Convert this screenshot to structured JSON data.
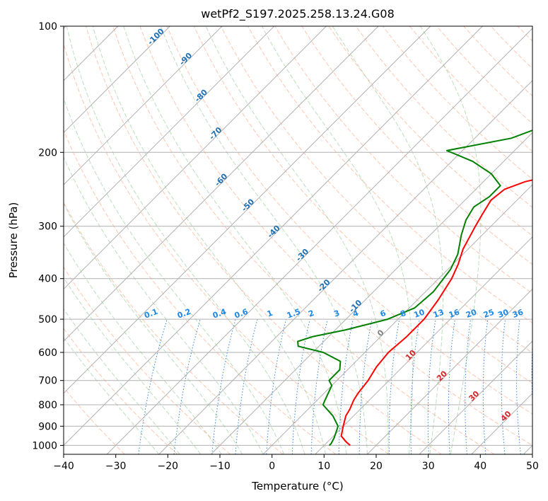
{
  "chart_data": {
    "type": "line",
    "title": "wetPf2_S197.2025.258.13.24.G08",
    "xlabel": "Temperature (°C)",
    "ylabel": "Pressure (hPa)",
    "xlim": [
      -40,
      50
    ],
    "ylim": [
      1050,
      100
    ],
    "y_scale": "log",
    "x_ticks": [
      "−40",
      "−30",
      "−20",
      "−10",
      "0",
      "10",
      "20",
      "30",
      "40",
      "50"
    ],
    "y_ticks": [
      {
        "p": 100,
        "label": "100"
      },
      {
        "p": 200,
        "label": "200"
      },
      {
        "p": 300,
        "label": "300"
      },
      {
        "p": 400,
        "label": "400"
      },
      {
        "p": 500,
        "label": "500"
      },
      {
        "p": 600,
        "label": "600"
      },
      {
        "p": 700,
        "label": "700"
      },
      {
        "p": 800,
        "label": "800"
      },
      {
        "p": 900,
        "label": "900"
      },
      {
        "p": 1000,
        "label": "1000"
      }
    ],
    "grid": true,
    "skew": true,
    "series": [
      {
        "role": "temperature",
        "color": "#ff0000",
        "points": [
          [
            15,
            1000
          ],
          [
            13.5,
            980
          ],
          [
            11.5,
            950
          ],
          [
            10,
            900
          ],
          [
            8.5,
            850
          ],
          [
            8,
            820
          ],
          [
            7,
            780
          ],
          [
            6.5,
            750
          ],
          [
            6,
            700
          ],
          [
            5,
            650
          ],
          [
            4.5,
            600
          ],
          [
            5,
            550
          ],
          [
            5,
            500
          ],
          [
            4,
            450
          ],
          [
            2.5,
            400
          ],
          [
            1,
            370
          ],
          [
            -1,
            340
          ],
          [
            -3,
            300
          ],
          [
            -4,
            280
          ],
          [
            -5,
            260
          ],
          [
            -4.5,
            245
          ],
          [
            -2,
            235
          ],
          [
            3,
            225
          ],
          [
            8,
            210
          ],
          [
            10,
            200
          ],
          [
            14,
            180
          ],
          [
            17,
            165
          ],
          [
            20,
            150
          ],
          [
            24,
            130
          ],
          [
            28,
            115
          ],
          [
            32,
            100
          ]
        ]
      },
      {
        "role": "dewpoint",
        "color": "#008000",
        "points": [
          [
            11,
            1000
          ],
          [
            11,
            990
          ],
          [
            10.5,
            960
          ],
          [
            9,
            900
          ],
          [
            6,
            850
          ],
          [
            2,
            800
          ],
          [
            1.5,
            780
          ],
          [
            0,
            720
          ],
          [
            -1.5,
            700
          ],
          [
            -1.5,
            660
          ],
          [
            -3,
            630
          ],
          [
            -8,
            600
          ],
          [
            -14,
            580
          ],
          [
            -15,
            565
          ],
          [
            -13,
            550
          ],
          [
            -8,
            530
          ],
          [
            -2,
            500
          ],
          [
            1,
            470
          ],
          [
            1.5,
            430
          ],
          [
            0.5,
            380
          ],
          [
            -1,
            350
          ],
          [
            -4,
            315
          ],
          [
            -6,
            290
          ],
          [
            -7,
            270
          ],
          [
            -6,
            255
          ],
          [
            -6,
            240
          ],
          [
            -10,
            225
          ],
          [
            -16,
            210
          ],
          [
            -23,
            198
          ],
          [
            -13,
            185
          ],
          [
            -8,
            170
          ],
          [
            -11,
            160
          ],
          [
            -11,
            150
          ],
          [
            -6,
            140
          ],
          [
            -7,
            125
          ],
          [
            -5,
            115
          ],
          [
            -2,
            105
          ],
          [
            0,
            100
          ]
        ]
      }
    ],
    "mixing_ratio_labels": [
      "0.1",
      "0.2",
      "0.4",
      "0.6",
      "1",
      "1.5",
      "2",
      "3",
      "4",
      "6",
      "8",
      "10",
      "13",
      "16",
      "20",
      "25",
      "30",
      "36"
    ],
    "mixing_ratio_values": [
      0.1,
      0.2,
      0.4,
      0.6,
      1,
      1.5,
      2,
      3,
      4,
      6,
      8,
      10,
      13,
      16,
      20,
      25,
      30,
      36
    ],
    "isotherm_labels": [
      {
        "t": -100,
        "label": "-100"
      },
      {
        "t": -90,
        "label": "-90"
      },
      {
        "t": -80,
        "label": "-80"
      },
      {
        "t": -70,
        "label": "-70"
      },
      {
        "t": -60,
        "label": "-60"
      },
      {
        "t": -50,
        "label": "-50"
      },
      {
        "t": -40,
        "label": "-40"
      },
      {
        "t": -30,
        "label": "-30"
      },
      {
        "t": -20,
        "label": "-20"
      },
      {
        "t": -10,
        "label": "-10"
      }
    ],
    "lower_isotherm_labels": [
      {
        "t": 0,
        "label": "0"
      },
      {
        "t": 10,
        "label": "10"
      },
      {
        "t": 20,
        "label": "20"
      },
      {
        "t": 30,
        "label": "30"
      },
      {
        "t": 40,
        "label": "40"
      }
    ],
    "colors": {
      "isotherm_label": "#1f6fb4",
      "mixing_ratio": "#1e88e5",
      "warm_label": "#d62728",
      "zero_label": "#808080",
      "dry_adiabat": "#ffa07a",
      "moist_adiabat": "#90c890",
      "mixing_line": "#1e78d8",
      "grid": "#b0b0b0"
    }
  }
}
